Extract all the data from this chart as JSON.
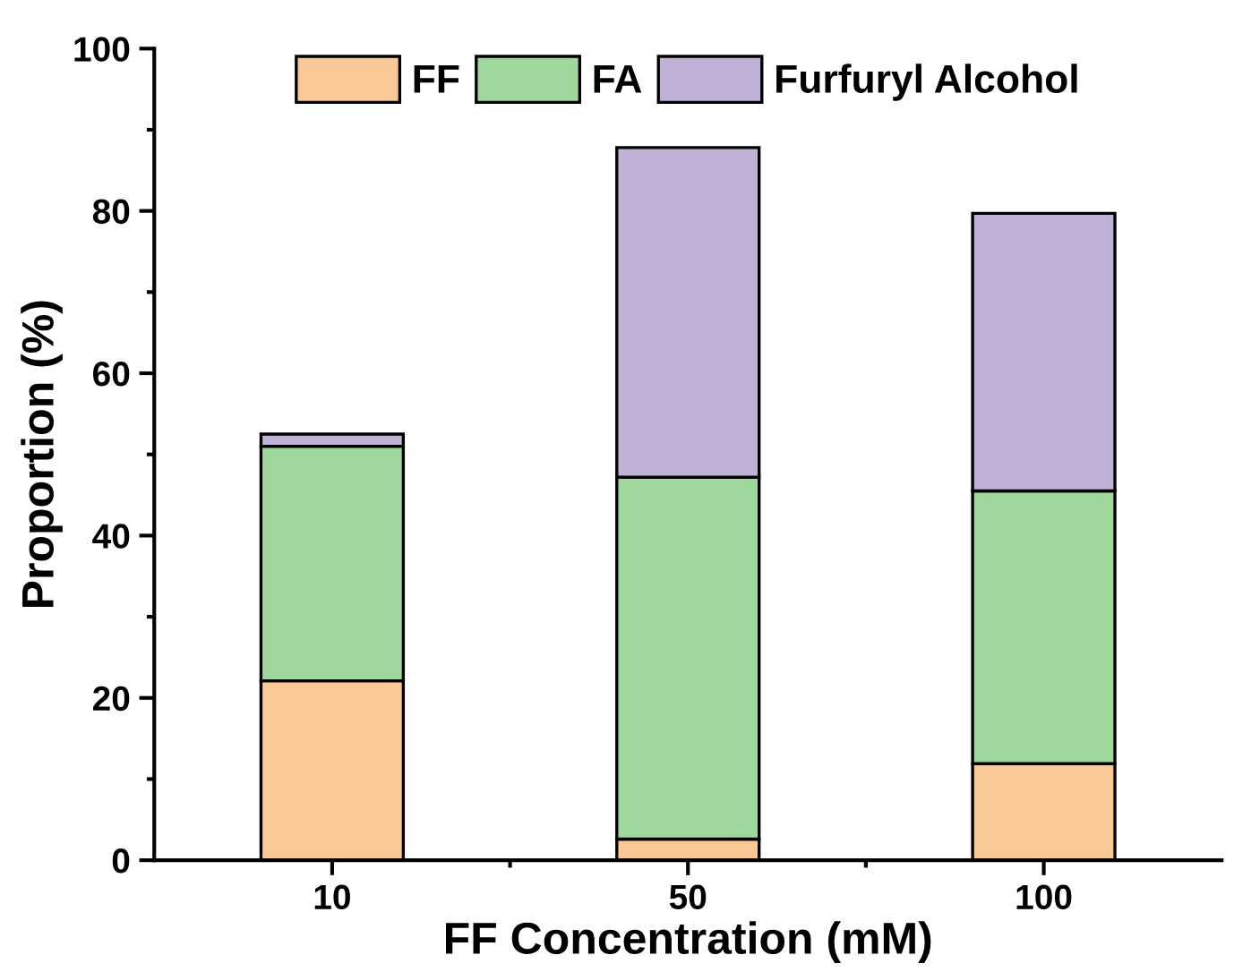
{
  "chart_data": {
    "type": "bar",
    "stacked": true,
    "xlabel": "FF Concentration (mM)",
    "ylabel": "Proportion (%)",
    "categories": [
      "10",
      "50",
      "100"
    ],
    "series": [
      {
        "name": "FF",
        "color": "#f9c897",
        "values": [
          22.1,
          2.6,
          11.9
        ]
      },
      {
        "name": "FA",
        "color": "#9fd89c",
        "values": [
          28.9,
          44.6,
          33.6
        ]
      },
      {
        "name": "Furfuryl Alcohol",
        "color": "#c0b1d6",
        "values": [
          1.5,
          40.6,
          34.2
        ]
      }
    ],
    "ylim": [
      0,
      100
    ],
    "yticks": [
      0,
      20,
      40,
      60,
      80,
      100
    ],
    "grid": false,
    "legend": "top"
  }
}
